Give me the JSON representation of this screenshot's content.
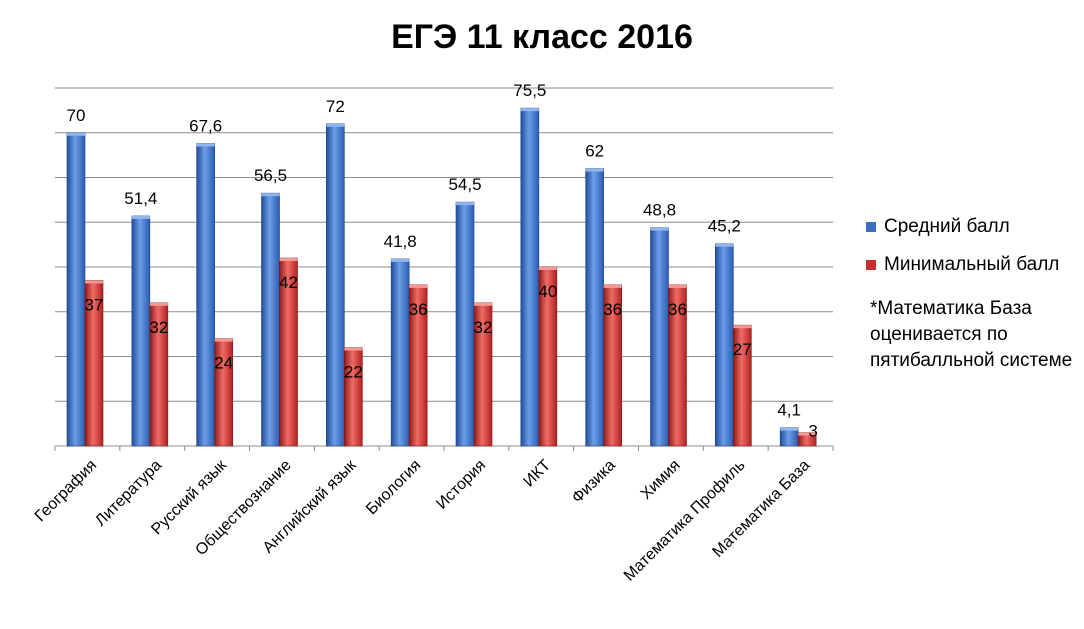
{
  "chart_data": {
    "type": "bar",
    "title": "ЕГЭ 11 класс 2016",
    "categories": [
      "География",
      "Литература",
      "Русский язык",
      "Обществознание",
      "Английский язык",
      "Биология",
      "История",
      "ИКТ",
      "Физика",
      "Химия",
      "Математика Профиль",
      "Математика База"
    ],
    "series": [
      {
        "name": "Средний балл",
        "color": "#3a6fc4",
        "values": [
          70,
          51.4,
          67.6,
          56.5,
          72,
          41.8,
          54.5,
          75.5,
          62,
          48.8,
          45.2,
          4.1
        ],
        "labels": [
          "70",
          "51,4",
          "67,6",
          "56,5",
          "72",
          "41,8",
          "54,5",
          "75,5",
          "62",
          "48,8",
          "45,2",
          "4,1"
        ]
      },
      {
        "name": "Минимальный балл",
        "color": "#c8302d",
        "values": [
          37,
          32,
          24,
          42,
          22,
          36,
          32,
          40,
          36,
          36,
          27,
          3
        ],
        "labels": [
          "37",
          "32",
          "24",
          "42",
          "22",
          "36",
          "32",
          "40",
          "36",
          "36",
          "27",
          "3"
        ]
      }
    ],
    "ylim": [
      0,
      80
    ],
    "grid": true,
    "legend": "right",
    "note": "*Математика База оценивается по пятибалльной системе"
  }
}
